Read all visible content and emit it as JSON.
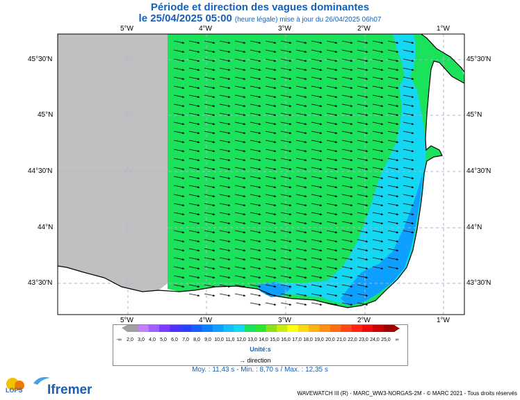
{
  "header": {
    "title": "Période et direction des vagues dominantes",
    "date": "le 25/04/2025 05:00",
    "update": "(heure légale) mise à jour du 26/04/2025 06h07"
  },
  "map": {
    "lon_labels": [
      "5°W",
      "4°W",
      "3°W",
      "2°W",
      "1°W"
    ],
    "lat_labels": [
      "45°30'N",
      "45°N",
      "44°30'N",
      "44°N",
      "43°30'N"
    ],
    "lon_range_deg_west": [
      5.9,
      0.72
    ],
    "lat_range_deg_north": [
      43.27,
      45.75
    ],
    "colors": {
      "no_data": "#c0c0c0",
      "land": "#ffffff",
      "green": "#1be25b",
      "cyan": "#14d7f2",
      "blue": "#0da0ff"
    },
    "dominant_direction": "from west (wind-sea arrows pointing east-south-east)"
  },
  "legend": {
    "labels": [
      "-∞",
      "2,0",
      "3,0",
      "4,0",
      "5,0",
      "6,0",
      "7,0",
      "8,0",
      "9,0",
      "10,0",
      "11,0",
      "12,0",
      "13,0",
      "14,0",
      "15,0",
      "16,0",
      "17,0",
      "18,0",
      "19,0",
      "20,0",
      "21,0",
      "22,0",
      "23,0",
      "24,0",
      "25,0",
      "∞"
    ],
    "colors": [
      "#a0a0a0",
      "#c080ff",
      "#a060ff",
      "#7a3cff",
      "#5030ff",
      "#2a40ff",
      "#1460ff",
      "#0a80ff",
      "#0da0ff",
      "#14c0ff",
      "#14d7f2",
      "#1be25b",
      "#2ee62e",
      "#8be21b",
      "#c8ec14",
      "#ffff14",
      "#ffd814",
      "#ffb414",
      "#ff9014",
      "#ff6c14",
      "#ff4814",
      "#ff2414",
      "#f00a0a",
      "#c80000",
      "#a00000"
    ],
    "unit": "Unité:s",
    "direction_label": "→ direction"
  },
  "stats": "Moy. : 11,43 s   -   Min. : 8,70 s / Max. : 12,35 s",
  "brand": {
    "lops": "LOPS",
    "ifremer": "Ifremer"
  },
  "footer": "WAVEWATCH III (R) - MARC_WW3-NORGAS-2M - © MARC 2021 - Tous droits réservés"
}
